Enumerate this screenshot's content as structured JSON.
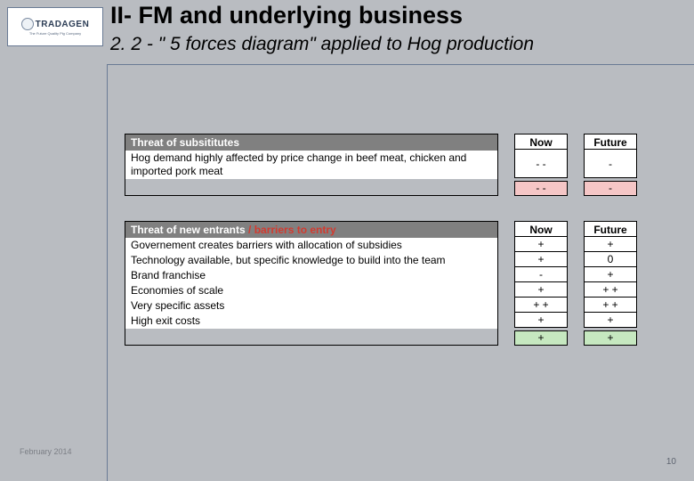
{
  "header": {
    "logo_text": "TRADAGEN",
    "logo_sub": "The Future Quality Pig Company",
    "title": "II-   FM and underlying business",
    "subtitle": "2. 2 - \" 5 forces diagram\" applied to Hog production"
  },
  "colors": {
    "page_bg": "#b9bcc1",
    "header_gray": "#808080",
    "pink": "#f5c6c6",
    "green": "#c6e8c0",
    "line": "#6a7b95"
  },
  "table1": {
    "title": "Threat of subsititutes",
    "title_extra": "",
    "col_now": "Now",
    "col_fut": "Future",
    "row_height": "tall",
    "rows": [
      {
        "label": "Hog demand highly affected by price change in beef meat, chicken and imported pork meat",
        "now": "- -",
        "fut": "-"
      }
    ],
    "summary": {
      "now": "- -",
      "fut": "-",
      "now_bg": "pink",
      "fut_bg": "pink"
    }
  },
  "table2": {
    "title": "Threat of new entrants",
    "title_extra": " / barriers to entry",
    "col_now": "Now",
    "col_fut": "Future",
    "row_height": "row",
    "rows": [
      {
        "label": "Governement creates barriers with allocation of subsidies",
        "now": "+",
        "fut": "+"
      },
      {
        "label": "Technology available, but specific knowledge to build into the team",
        "now": "+",
        "fut": "0"
      },
      {
        "label": "Brand franchise",
        "now": "-",
        "fut": "+"
      },
      {
        "label": "Economies of scale",
        "now": "+",
        "fut": "+ +"
      },
      {
        "label": "Very specific assets",
        "now": "+ +",
        "fut": "+ +"
      },
      {
        "label": "High exit costs",
        "now": "+",
        "fut": "+"
      }
    ],
    "summary": {
      "now": "+",
      "fut": "+",
      "now_bg": "green",
      "fut_bg": "green"
    }
  },
  "footer": {
    "date": "February 2014",
    "page": "10"
  }
}
